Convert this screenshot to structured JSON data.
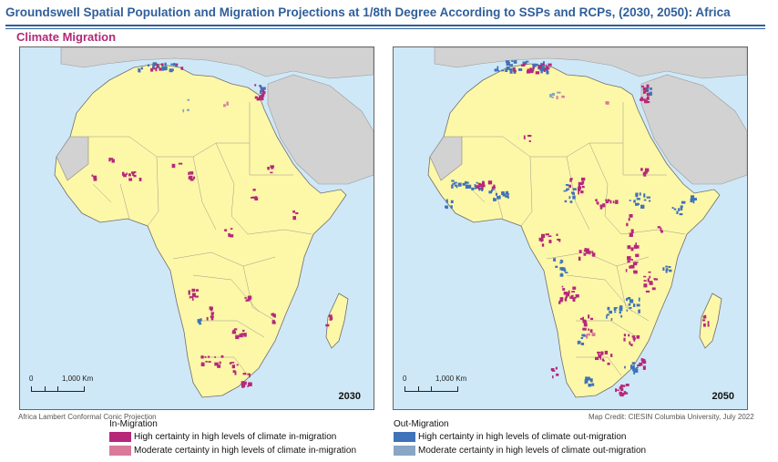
{
  "title": "Groundswell Spatial Population and Migration Projections at 1/8th Degree According to SSPs and RCPs, (2030, 2050): Africa",
  "subtitle": "Climate Migration",
  "panels": [
    {
      "year": "2030"
    },
    {
      "year": "2050"
    }
  ],
  "scale_bar": {
    "zero": "0",
    "distance": "1,000 Km"
  },
  "projection_note": "Africa Lambert Conformal Conic Projection",
  "map_credit": "Map Credit: CIESIN Columbia University, July 2022",
  "legend": {
    "in_migration": {
      "heading": "In-Migration",
      "items": [
        {
          "label": "High certainty in high levels of climate in-migration",
          "color": "#b5287a"
        },
        {
          "label": "Moderate certainty in high levels of climate in-migration",
          "color": "#d97a9a"
        }
      ]
    },
    "out_migration": {
      "heading": "Out-Migration",
      "items": [
        {
          "label": "High certainty in high levels of climate out-migration",
          "color": "#3f72b8"
        },
        {
          "label": "Moderate certainty in high levels of climate out-migration",
          "color": "#88a6c6"
        }
      ]
    }
  },
  "colors": {
    "land": "#fdf7a8",
    "ocean": "#cfe8f7",
    "other_land": "#d2d2d2",
    "title_blue": "#2f5f9a",
    "subtitle_magenta": "#b02a77"
  }
}
